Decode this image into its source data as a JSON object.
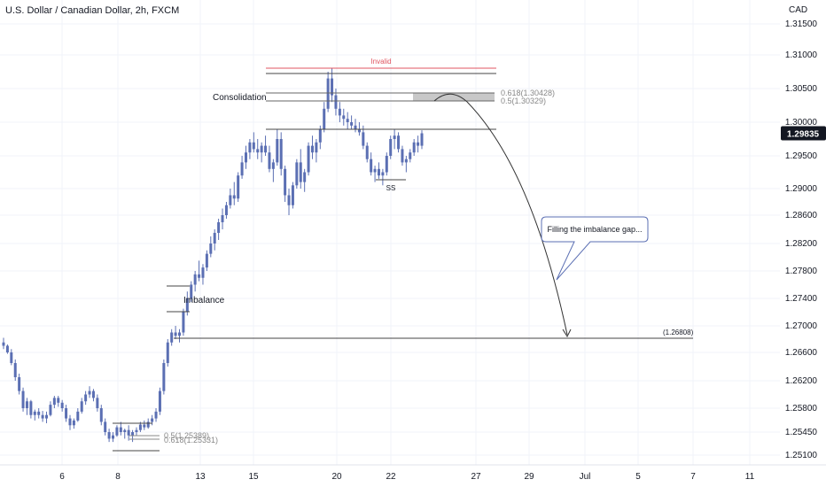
{
  "header": {
    "title": "U.S. Dollar / Canadian Dollar, 2h, FXCM",
    "currency": "CAD"
  },
  "chart_data": {
    "type": "candlestick",
    "y_ticks": [
      1.315,
      1.31,
      1.305,
      1.3,
      1.295,
      1.29,
      1.286,
      1.282,
      1.278,
      1.274,
      1.27,
      1.266,
      1.262,
      1.258,
      1.2545,
      1.251
    ],
    "y_tick_labels": [
      "1.31500",
      "1.31000",
      "1.30500",
      "1.30000",
      "1.29500",
      "1.29000",
      "1.28600",
      "1.28200",
      "1.27800",
      "1.27400",
      "1.27000",
      "1.26600",
      "1.26200",
      "1.25800",
      "1.25450",
      "1.25100"
    ],
    "x_tick_labels": [
      "6",
      "8",
      "13",
      "15",
      "20",
      "22",
      "27",
      "29",
      "Jul",
      "5",
      "7",
      "11"
    ],
    "last_price": "1.29835",
    "ohlc": [
      [
        1.2675,
        1.2682,
        1.2665,
        1.267
      ],
      [
        1.267,
        1.2672,
        1.2658,
        1.266
      ],
      [
        1.266,
        1.2665,
        1.2642,
        1.2645
      ],
      [
        1.2645,
        1.265,
        1.262,
        1.2625
      ],
      [
        1.2625,
        1.263,
        1.26,
        1.2605
      ],
      [
        1.2605,
        1.261,
        1.2575,
        1.258
      ],
      [
        1.258,
        1.2595,
        1.257,
        1.259
      ],
      [
        1.259,
        1.2592,
        1.2565,
        1.257
      ],
      [
        1.257,
        1.2578,
        1.2562,
        1.2575
      ],
      [
        1.2575,
        1.258,
        1.2565,
        1.257
      ],
      [
        1.257,
        1.2576,
        1.256,
        1.2565
      ],
      [
        1.2565,
        1.2575,
        1.2558,
        1.257
      ],
      [
        1.257,
        1.259,
        1.2568,
        1.2585
      ],
      [
        1.2585,
        1.2598,
        1.258,
        1.2595
      ],
      [
        1.2595,
        1.2598,
        1.2582,
        1.2588
      ],
      [
        1.2588,
        1.2592,
        1.2575,
        1.258
      ],
      [
        1.258,
        1.2585,
        1.256,
        1.2565
      ],
      [
        1.2565,
        1.257,
        1.2548,
        1.2555
      ],
      [
        1.2555,
        1.2565,
        1.255,
        1.2562
      ],
      [
        1.2562,
        1.258,
        1.256,
        1.2575
      ],
      [
        1.2575,
        1.2595,
        1.2572,
        1.259
      ],
      [
        1.259,
        1.2605,
        1.2585,
        1.26
      ],
      [
        1.26,
        1.2612,
        1.2595,
        1.2605
      ],
      [
        1.2605,
        1.2608,
        1.259,
        1.2595
      ],
      [
        1.2595,
        1.26,
        1.2575,
        1.258
      ],
      [
        1.258,
        1.2585,
        1.2555,
        1.256
      ],
      [
        1.256,
        1.2565,
        1.254,
        1.2545
      ],
      [
        1.2545,
        1.255,
        1.253,
        1.2535
      ],
      [
        1.2535,
        1.2545,
        1.253,
        1.254
      ],
      [
        1.254,
        1.2555,
        1.2538,
        1.2552
      ],
      [
        1.2552,
        1.256,
        1.254,
        1.2545
      ],
      [
        1.2545,
        1.255,
        1.2535,
        1.2548
      ],
      [
        1.2548,
        1.2555,
        1.2532,
        1.254
      ],
      [
        1.254,
        1.2548,
        1.253,
        1.2545
      ],
      [
        1.2545,
        1.2552,
        1.254,
        1.2548
      ],
      [
        1.2548,
        1.256,
        1.2545,
        1.2556
      ],
      [
        1.2556,
        1.2562,
        1.2548,
        1.2552
      ],
      [
        1.2552,
        1.2565,
        1.255,
        1.256
      ],
      [
        1.256,
        1.257,
        1.2555,
        1.2565
      ],
      [
        1.2565,
        1.258,
        1.256,
        1.2575
      ],
      [
        1.2575,
        1.261,
        1.257,
        1.2605
      ],
      [
        1.2605,
        1.265,
        1.26,
        1.2645
      ],
      [
        1.2645,
        1.268,
        1.264,
        1.2675
      ],
      [
        1.2675,
        1.2695,
        1.267,
        1.269
      ],
      [
        1.269,
        1.27,
        1.268,
        1.2685
      ],
      [
        1.2685,
        1.2695,
        1.2675,
        1.269
      ],
      [
        1.269,
        1.2725,
        1.2685,
        1.272
      ],
      [
        1.272,
        1.275,
        1.2715,
        1.274
      ],
      [
        1.274,
        1.2765,
        1.2735,
        1.276
      ],
      [
        1.276,
        1.278,
        1.275,
        1.2775
      ],
      [
        1.2775,
        1.2795,
        1.2765,
        1.277
      ],
      [
        1.277,
        1.279,
        1.276,
        1.2785
      ],
      [
        1.2785,
        1.281,
        1.278,
        1.2805
      ],
      [
        1.2805,
        1.283,
        1.28,
        1.282
      ],
      [
        1.282,
        1.284,
        1.281,
        1.2835
      ],
      [
        1.2835,
        1.2855,
        1.2825,
        1.285
      ],
      [
        1.285,
        1.287,
        1.284,
        1.286
      ],
      [
        1.286,
        1.288,
        1.2855,
        1.2875
      ],
      [
        1.2875,
        1.29,
        1.287,
        1.289
      ],
      [
        1.289,
        1.291,
        1.2875,
        1.2885
      ],
      [
        1.2885,
        1.2925,
        1.288,
        1.292
      ],
      [
        1.292,
        1.295,
        1.2915,
        1.294
      ],
      [
        1.294,
        1.2965,
        1.293,
        1.2955
      ],
      [
        1.2955,
        1.2975,
        1.2945,
        1.297
      ],
      [
        1.297,
        1.2985,
        1.2955,
        1.296
      ],
      [
        1.296,
        1.2975,
        1.2945,
        1.2955
      ],
      [
        1.2955,
        1.297,
        1.294,
        1.2965
      ],
      [
        1.2965,
        1.298,
        1.295,
        1.2955
      ],
      [
        1.2955,
        1.2965,
        1.2925,
        1.293
      ],
      [
        1.293,
        1.2945,
        1.291,
        1.294
      ],
      [
        1.294,
        1.299,
        1.2935,
        1.2975
      ],
      [
        1.2975,
        1.2985,
        1.292,
        1.293
      ],
      [
        1.293,
        1.2935,
        1.288,
        1.289
      ],
      [
        1.289,
        1.29,
        1.286,
        1.2875
      ],
      [
        1.2875,
        1.291,
        1.287,
        1.2905
      ],
      [
        1.2905,
        1.2945,
        1.29,
        1.294
      ],
      [
        1.294,
        1.296,
        1.29,
        1.291
      ],
      [
        1.291,
        1.293,
        1.2895,
        1.2925
      ],
      [
        1.2925,
        1.297,
        1.292,
        1.2965
      ],
      [
        1.2965,
        1.298,
        1.2945,
        1.2955
      ],
      [
        1.2955,
        1.2975,
        1.294,
        1.297
      ],
      [
        1.297,
        1.2995,
        1.296,
        1.299
      ],
      [
        1.299,
        1.303,
        1.2985,
        1.302
      ],
      [
        1.302,
        1.3075,
        1.3015,
        1.3065
      ],
      [
        1.3065,
        1.308,
        1.303,
        1.304
      ],
      [
        1.304,
        1.305,
        1.301,
        1.302
      ],
      [
        1.302,
        1.303,
        1.3,
        1.301
      ],
      [
        1.301,
        1.302,
        1.2995,
        1.3005
      ],
      [
        1.3005,
        1.3015,
        1.299,
        1.3
      ],
      [
        1.3,
        1.301,
        1.299,
        1.2995
      ],
      [
        1.2995,
        1.3005,
        1.2985,
        1.299
      ],
      [
        1.299,
        1.3,
        1.298,
        1.2985
      ],
      [
        1.2985,
        1.2995,
        1.296,
        1.2965
      ],
      [
        1.2965,
        1.297,
        1.294,
        1.2945
      ],
      [
        1.2945,
        1.2955,
        1.292,
        1.2925
      ],
      [
        1.2925,
        1.2935,
        1.291,
        1.293
      ],
      [
        1.293,
        1.294,
        1.2915,
        1.292
      ],
      [
        1.292,
        1.293,
        1.2905,
        1.2925
      ],
      [
        1.2925,
        1.2955,
        1.292,
        1.295
      ],
      [
        1.295,
        1.298,
        1.2945,
        1.2975
      ],
      [
        1.2975,
        1.299,
        1.296,
        1.298
      ],
      [
        1.298,
        1.2985,
        1.2955,
        1.296
      ],
      [
        1.296,
        1.2965,
        1.2935,
        1.294
      ],
      [
        1.294,
        1.295,
        1.2925,
        1.2945
      ],
      [
        1.2945,
        1.296,
        1.294,
        1.2955
      ],
      [
        1.2955,
        1.2975,
        1.295,
        1.297
      ],
      [
        1.297,
        1.298,
        1.2955,
        1.2965
      ],
      [
        1.2965,
        1.2988,
        1.296,
        1.29835
      ]
    ],
    "annotations": {
      "invalid_label": "Invalid",
      "consolidation_label": "Consolidation",
      "fib_upper_618": "0.618(1.30428)",
      "fib_upper_5": "0.5(1.30329)",
      "imbalance_label": "Imbalance",
      "fib_lower_5": "0.5(1.25389)",
      "fib_lower_618": "0.618(1.25331)",
      "ss_label": "SS",
      "callout_text": "Filling the imbalance gap...",
      "target_label": "(1.26808)"
    },
    "colors": {
      "candle": "#5b6fb3",
      "invalid_line": "#e05560",
      "zone": "#c8c8c8",
      "last_price_bg": "#131722"
    }
  }
}
